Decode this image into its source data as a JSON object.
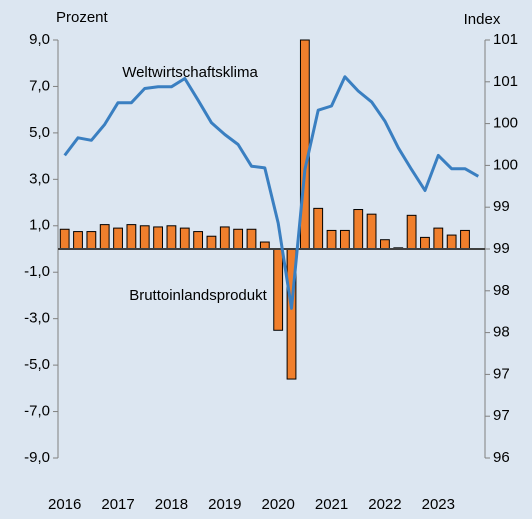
{
  "chart_data": {
    "type": "bar",
    "ylabel": "Prozent",
    "y2label": "Index",
    "categories": [
      "2016",
      null,
      null,
      null,
      "2017",
      null,
      null,
      null,
      "2018",
      null,
      null,
      null,
      "2019",
      null,
      null,
      null,
      "2020",
      null,
      null,
      null,
      "2021",
      null,
      null,
      null,
      "2022",
      null,
      null,
      null,
      "2023",
      null,
      null,
      null
    ],
    "series": [
      {
        "name": "Bruttoinlandsprodukt",
        "type": "bar",
        "color": "#f07f2c",
        "values": [
          0.85,
          0.75,
          0.75,
          1.05,
          0.9,
          1.05,
          1.0,
          0.95,
          1.0,
          0.9,
          0.75,
          0.55,
          0.95,
          0.85,
          0.85,
          0.3,
          -3.5,
          -5.6,
          9.0,
          1.75,
          0.8,
          0.8,
          1.7,
          1.5,
          0.4,
          0.05,
          1.45,
          0.5,
          0.9,
          0.6,
          0.8,
          null
        ]
      },
      {
        "name": "Weltwirtschaftsklima",
        "type": "line",
        "axis": "y2",
        "color": "#3a7fc1",
        "values": [
          100.02,
          100.23,
          100.2,
          100.39,
          100.65,
          100.65,
          100.82,
          100.84,
          100.84,
          100.94,
          100.68,
          100.41,
          100.27,
          100.15,
          99.89,
          99.87,
          99.21,
          98.19,
          99.85,
          100.56,
          100.61,
          100.96,
          100.79,
          100.66,
          100.43,
          100.11,
          99.85,
          99.6,
          100.02,
          99.86,
          99.86,
          99.77
        ]
      }
    ],
    "ylim": [
      -9,
      9
    ],
    "yticks": [
      {
        "value": 9,
        "label": "9,0"
      },
      {
        "value": 7,
        "label": "7,0"
      },
      {
        "value": 5,
        "label": "5,0"
      },
      {
        "value": 3,
        "label": "3,0"
      },
      {
        "value": 1,
        "label": "1,0"
      },
      {
        "value": -1,
        "label": "-1,0"
      },
      {
        "value": -3,
        "label": "-3,0"
      },
      {
        "value": -5,
        "label": "-5,0"
      },
      {
        "value": -7,
        "label": "-7,0"
      },
      {
        "value": -9,
        "label": "-9,0"
      }
    ],
    "y2lim": [
      96.4,
      101.4
    ],
    "y2ticks": [
      {
        "value": 101.4,
        "label": "101"
      },
      {
        "value": 100.9,
        "label": "101"
      },
      {
        "value": 100.4,
        "label": "100"
      },
      {
        "value": 99.9,
        "label": "100"
      },
      {
        "value": 99.4,
        "label": "99"
      },
      {
        "value": 98.9,
        "label": "99"
      },
      {
        "value": 98.4,
        "label": "98"
      },
      {
        "value": 97.9,
        "label": "98"
      },
      {
        "value": 97.4,
        "label": "97"
      },
      {
        "value": 96.9,
        "label": "97"
      },
      {
        "value": 96.4,
        "label": "96"
      }
    ]
  }
}
